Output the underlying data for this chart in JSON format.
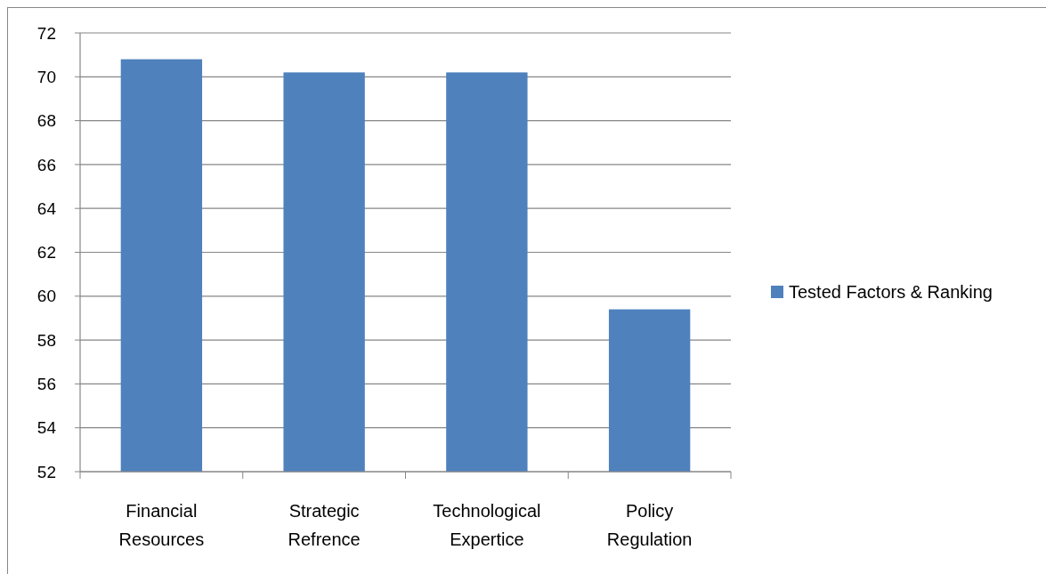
{
  "chart_data": {
    "type": "bar",
    "categories": [
      "Financial Resources",
      "Strategic Refrence",
      "Technological Expertice",
      "Policy Regulation"
    ],
    "series": [
      {
        "name": "Tested Factors & Ranking",
        "color": "#4f81bd",
        "values": [
          70.8,
          70.2,
          70.2,
          59.4
        ]
      }
    ],
    "ylim": [
      52,
      72
    ],
    "yticks": [
      52,
      54,
      56,
      58,
      60,
      62,
      64,
      66,
      68,
      70,
      72
    ],
    "grid": "y",
    "legend": "right"
  }
}
